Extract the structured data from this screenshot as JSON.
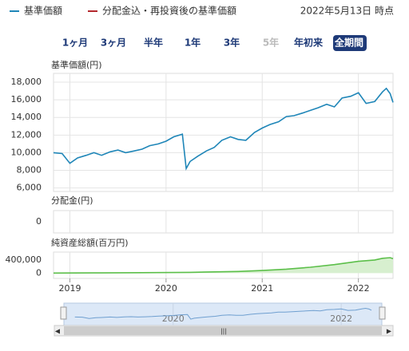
{
  "header": {
    "legend": [
      {
        "name": "基準価額",
        "color": "#1f86b8"
      },
      {
        "name": "分配金込・再投資後の基準価額",
        "color": "#b3282d"
      }
    ],
    "as_of": "2022年5月13日 時点",
    "ranges": [
      "1ヶ月",
      "3ヶ月",
      "半年",
      "1年",
      "3年",
      "5年",
      "年初来",
      "全期間"
    ],
    "active_range": 7,
    "disabled_ranges": [
      5
    ]
  },
  "chart_data": [
    {
      "type": "line",
      "title": "基準価額(円)",
      "x": [
        2018.83,
        2018.92,
        2019.0,
        2019.08,
        2019.17,
        2019.25,
        2019.33,
        2019.42,
        2019.5,
        2019.58,
        2019.67,
        2019.75,
        2019.83,
        2019.92,
        2020.0,
        2020.08,
        2020.17,
        2020.21,
        2020.25,
        2020.33,
        2020.42,
        2020.5,
        2020.58,
        2020.67,
        2020.75,
        2020.83,
        2020.92,
        2021.0,
        2021.08,
        2021.17,
        2021.25,
        2021.33,
        2021.42,
        2021.5,
        2021.58,
        2021.67,
        2021.75,
        2021.83,
        2021.92,
        2022.0,
        2022.08,
        2022.17,
        2022.25,
        2022.29,
        2022.33,
        2022.36
      ],
      "series": [
        {
          "color": "#1f86b8",
          "values": [
            10000,
            9900,
            8800,
            9400,
            9700,
            10000,
            9700,
            10100,
            10300,
            10000,
            10200,
            10400,
            10800,
            11000,
            11300,
            11800,
            12100,
            8200,
            9000,
            9600,
            10200,
            10600,
            11400,
            11800,
            11500,
            11400,
            12300,
            12800,
            13200,
            13500,
            14100,
            14200,
            14500,
            14800,
            15100,
            15500,
            15200,
            16200,
            16400,
            16800,
            15600,
            15800,
            16900,
            17300,
            16700,
            15700
          ]
        }
      ],
      "xlim": [
        2018.83,
        2022.36
      ],
      "xticks": [
        2019,
        2020,
        2021,
        2022
      ],
      "ylim": [
        5600,
        19000
      ],
      "yticks": [
        {
          "value": 6000,
          "label": "6,000"
        },
        {
          "value": 8000,
          "label": "8,000"
        },
        {
          "value": 10000,
          "label": "10,000"
        },
        {
          "value": 12000,
          "label": "12,000"
        },
        {
          "value": 14000,
          "label": "14,000"
        },
        {
          "value": 16000,
          "label": "16,000"
        },
        {
          "value": 18000,
          "label": "18,000"
        }
      ],
      "grid": true
    },
    {
      "type": "bar",
      "title": "分配金(円)",
      "ylim": [
        -1,
        1
      ],
      "yticks": [
        0
      ]
    },
    {
      "type": "area",
      "title": "純資産総額(百万円)",
      "x": [
        2018.83,
        2019.25,
        2019.75,
        2020.25,
        2020.75,
        2021.0,
        2021.25,
        2021.5,
        2021.75,
        2022.0,
        2022.17,
        2022.25,
        2022.33,
        2022.36
      ],
      "values": [
        2000,
        8000,
        15000,
        25000,
        50000,
        80000,
        120000,
        180000,
        260000,
        360000,
        400000,
        450000,
        470000,
        440000
      ],
      "color": "#5cbf4a",
      "ylim": [
        -160000,
        640000
      ],
      "yticks": [
        0,
        {
          "value": 400000,
          "label": "400,000"
        }
      ]
    },
    {
      "type": "navigator",
      "xlim": [
        2018.7,
        2022.55
      ],
      "xticks": [
        2020,
        2022
      ]
    }
  ]
}
